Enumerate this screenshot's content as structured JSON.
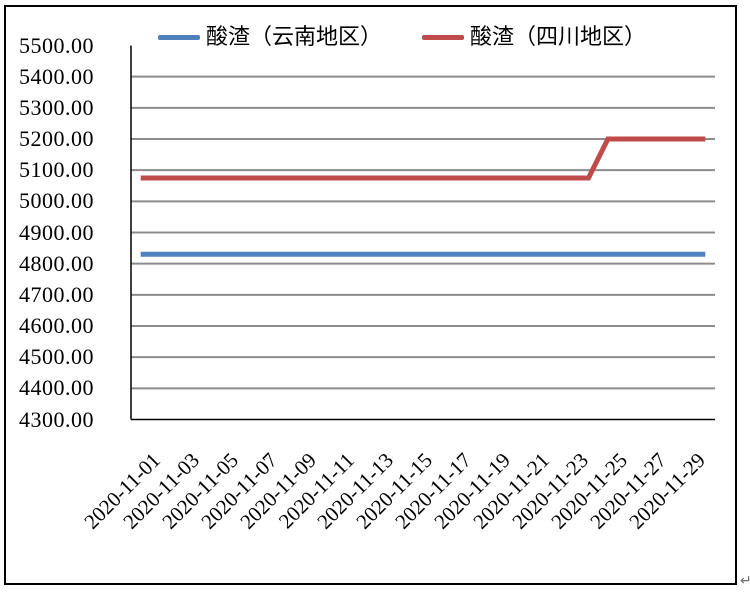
{
  "page": {
    "paragraph_mark": "↵"
  },
  "colors": {
    "yunnan_line": "#4F81BD",
    "sichuan_line": "#BF4B4B",
    "gridline": "#8C8C8C",
    "axis": "#000000",
    "frame_border": "#000000",
    "background": "#FFFFFF"
  },
  "chart_data": {
    "type": "line",
    "title": "",
    "xlabel": "",
    "ylabel": "",
    "grid": "horizontal",
    "legend_position": "top",
    "ylim": [
      4300,
      5500
    ],
    "y_tick_step": 100,
    "y_tick_labels": [
      "5500.00",
      "5400.00",
      "5300.00",
      "5200.00",
      "5100.00",
      "5000.00",
      "4900.00",
      "4800.00",
      "4700.00",
      "4600.00",
      "4500.00",
      "4400.00",
      "4300.00"
    ],
    "x": [
      "2020-11-01",
      "2020-11-02",
      "2020-11-03",
      "2020-11-04",
      "2020-11-05",
      "2020-11-06",
      "2020-11-07",
      "2020-11-08",
      "2020-11-09",
      "2020-11-10",
      "2020-11-11",
      "2020-11-12",
      "2020-11-13",
      "2020-11-14",
      "2020-11-15",
      "2020-11-16",
      "2020-11-17",
      "2020-11-18",
      "2020-11-19",
      "2020-11-20",
      "2020-11-21",
      "2020-11-22",
      "2020-11-23",
      "2020-11-24",
      "2020-11-25",
      "2020-11-26",
      "2020-11-27",
      "2020-11-28",
      "2020-11-29",
      "2020-11-30"
    ],
    "x_tick_labels": [
      "2020-11-01",
      "2020-11-03",
      "2020-11-05",
      "2020-11-07",
      "2020-11-09",
      "2020-11-11",
      "2020-11-13",
      "2020-11-15",
      "2020-11-17",
      "2020-11-19",
      "2020-11-21",
      "2020-11-23",
      "2020-11-25",
      "2020-11-27",
      "2020-11-29"
    ],
    "x_tick_every": 2,
    "series": [
      {
        "name": "酸渣（云南地区）",
        "color": "#4F81BD",
        "values": [
          4830,
          4830,
          4830,
          4830,
          4830,
          4830,
          4830,
          4830,
          4830,
          4830,
          4830,
          4830,
          4830,
          4830,
          4830,
          4830,
          4830,
          4830,
          4830,
          4830,
          4830,
          4830,
          4830,
          4830,
          4830,
          4830,
          4830,
          4830,
          4830,
          4830
        ]
      },
      {
        "name": "酸渣（四川地区）",
        "color": "#BF4B4B",
        "values": [
          5075,
          5075,
          5075,
          5075,
          5075,
          5075,
          5075,
          5075,
          5075,
          5075,
          5075,
          5075,
          5075,
          5075,
          5075,
          5075,
          5075,
          5075,
          5075,
          5075,
          5075,
          5075,
          5075,
          5075,
          5200,
          5200,
          5200,
          5200,
          5200,
          5200
        ]
      }
    ]
  }
}
